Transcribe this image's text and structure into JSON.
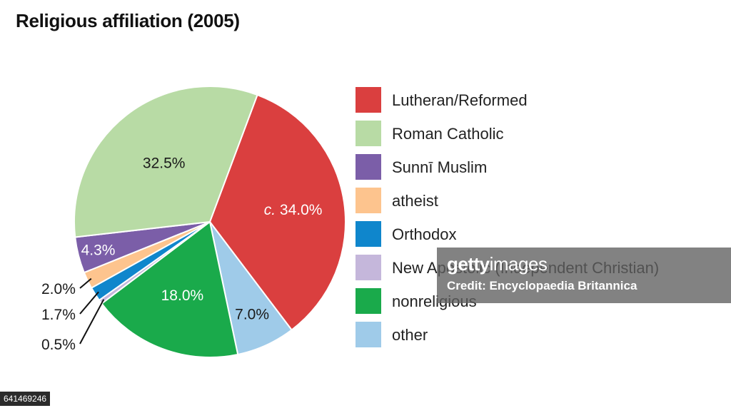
{
  "title": "Religious affiliation (2005)",
  "chart_data": {
    "type": "pie",
    "title": "Religious affiliation (2005)",
    "slices": [
      {
        "name": "Lutheran/Reformed",
        "value": 34.0,
        "label": "34.0%",
        "prefix": "c.",
        "color": "#da3f3f"
      },
      {
        "name": "other",
        "value": 7.0,
        "label": "7.0%",
        "color": "#9fcbe9"
      },
      {
        "name": "nonreligious",
        "value": 18.0,
        "label": "18.0%",
        "color": "#1aaa4b"
      },
      {
        "name": "New Apostolic (Independent Christian)",
        "value": 0.5,
        "label": "0.5%",
        "color": "#c5b7db"
      },
      {
        "name": "Orthodox",
        "value": 1.7,
        "label": "1.7%",
        "color": "#0f86cc"
      },
      {
        "name": "atheist",
        "value": 2.0,
        "label": "2.0%",
        "color": "#fdc48e"
      },
      {
        "name": "Sunnī Muslim",
        "value": 4.3,
        "label": "4.3%",
        "color": "#7b5ea8"
      },
      {
        "name": "Roman Catholic",
        "value": 32.5,
        "label": "32.5%",
        "color": "#b8dba5"
      }
    ]
  },
  "legend": [
    {
      "label": "Lutheran/Reformed",
      "color": "#da3f3f"
    },
    {
      "label": "Roman Catholic",
      "color": "#b8dba5"
    },
    {
      "label": "Sunnī Muslim",
      "color": "#7b5ea8"
    },
    {
      "label": "atheist",
      "color": "#fdc48e"
    },
    {
      "label": "Orthodox",
      "color": "#0f86cc"
    },
    {
      "label": "New Apostolic (Independent Christian)",
      "color": "#c5b7db"
    },
    {
      "label": "nonreligious",
      "color": "#1aaa4b"
    },
    {
      "label": "other",
      "color": "#9fcbe9"
    }
  ],
  "watermark": {
    "logo_a": "getty",
    "logo_b": "images",
    "credit": "Credit: Encyclopaedia Britannica"
  },
  "image_id": "641469246"
}
